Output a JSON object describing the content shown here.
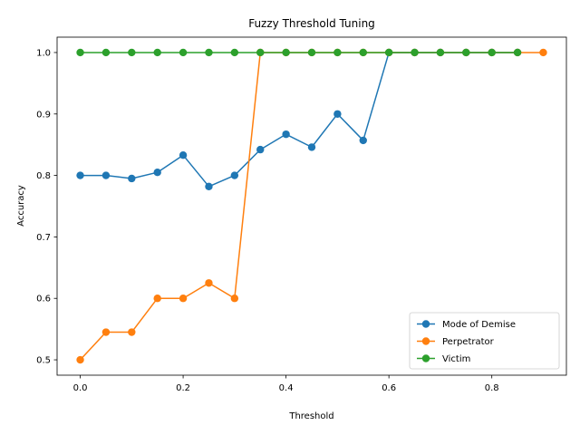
{
  "chart_data": {
    "type": "line",
    "title": "Fuzzy Threshold Tuning",
    "xlabel": "Threshold",
    "ylabel": "Accuracy",
    "xlim": [
      -0.045,
      0.945
    ],
    "ylim": [
      0.475,
      1.025
    ],
    "xticks": [
      0.0,
      0.2,
      0.4,
      0.6,
      0.8
    ],
    "xtick_labels": [
      "0.0",
      "0.2",
      "0.4",
      "0.6",
      "0.8"
    ],
    "yticks": [
      0.5,
      0.6,
      0.7,
      0.8,
      0.9,
      1.0
    ],
    "ytick_labels": [
      "0.5",
      "0.6",
      "0.7",
      "0.8",
      "0.9",
      "1.0"
    ],
    "grid": false,
    "legend_position": "bottom-right",
    "series": [
      {
        "name": "Mode of Demise",
        "color": "#1f77b4",
        "x": [
          0.0,
          0.05,
          0.1,
          0.15,
          0.2,
          0.25,
          0.3,
          0.35,
          0.4,
          0.45,
          0.5,
          0.55,
          0.6,
          0.65,
          0.7,
          0.75,
          0.8,
          0.85
        ],
        "y": [
          0.8,
          0.8,
          0.795,
          0.805,
          0.833,
          0.782,
          0.8,
          0.842,
          0.867,
          0.846,
          0.9,
          0.857,
          1.0,
          1.0,
          1.0,
          1.0,
          1.0,
          1.0
        ]
      },
      {
        "name": "Perpetrator",
        "color": "#ff7f0e",
        "x": [
          0.0,
          0.05,
          0.1,
          0.15,
          0.2,
          0.25,
          0.3,
          0.35,
          0.4,
          0.45,
          0.5,
          0.55,
          0.6,
          0.65,
          0.7,
          0.75,
          0.8,
          0.85,
          0.9
        ],
        "y": [
          0.5,
          0.545,
          0.545,
          0.6,
          0.6,
          0.625,
          0.6,
          1.0,
          1.0,
          1.0,
          1.0,
          1.0,
          1.0,
          1.0,
          1.0,
          1.0,
          1.0,
          1.0,
          1.0
        ]
      },
      {
        "name": "Victim",
        "color": "#2ca02c",
        "x": [
          0.0,
          0.05,
          0.1,
          0.15,
          0.2,
          0.25,
          0.3,
          0.35,
          0.4,
          0.45,
          0.5,
          0.55,
          0.6,
          0.65,
          0.7,
          0.75,
          0.8,
          0.85
        ],
        "y": [
          1.0,
          1.0,
          1.0,
          1.0,
          1.0,
          1.0,
          1.0,
          1.0,
          1.0,
          1.0,
          1.0,
          1.0,
          1.0,
          1.0,
          1.0,
          1.0,
          1.0,
          1.0
        ]
      }
    ]
  }
}
